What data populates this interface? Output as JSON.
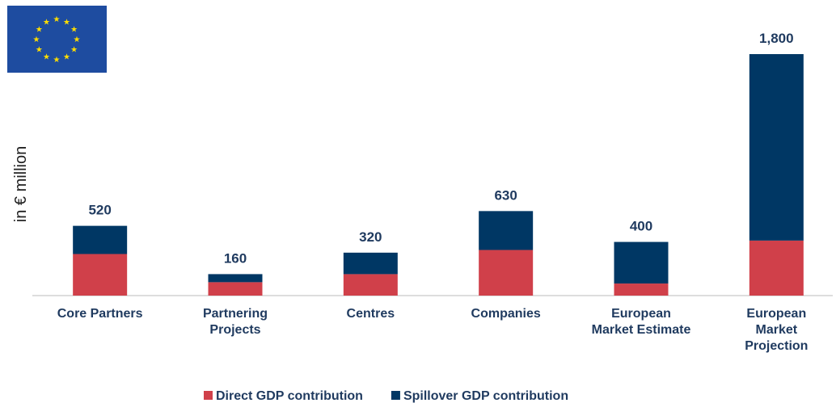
{
  "chart_data": {
    "type": "stacked_bar",
    "y_label": "in € million",
    "categories": [
      "Core Partners",
      "Partnering\nProjects",
      "Centres",
      "Companies",
      "European\nMarket Estimate",
      "European\nMarket\nProjection"
    ],
    "series": [
      {
        "name": "Direct GDP contribution",
        "color": "#d0404a",
        "values": [
          310,
          100,
          160,
          340,
          90,
          410
        ]
      },
      {
        "name": "Spillover GDP contribution",
        "color": "#003764",
        "values": [
          210,
          60,
          160,
          290,
          310,
          1390
        ]
      }
    ],
    "totals": [
      520,
      160,
      320,
      630,
      400,
      1800
    ],
    "total_labels": [
      "520",
      "160",
      "320",
      "630",
      "400",
      "1,800"
    ],
    "ylim": [
      0,
      1800
    ],
    "legend": "bottom"
  }
}
